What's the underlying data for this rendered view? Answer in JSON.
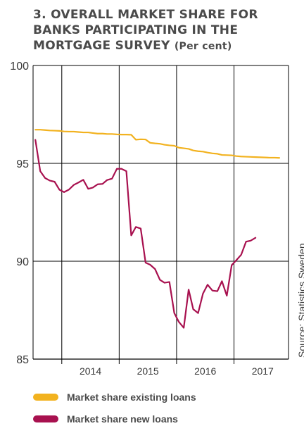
{
  "title": "3. OVERALL MARKET SHARE FOR BANKS PARTICIPATING IN THE MORTGAGE SURVEY",
  "title_unit": "(Per cent)",
  "source": "Source: Statistics Sweden.",
  "colors": {
    "existing": "#f2b21f",
    "new": "#a8114f",
    "axis": "#000000",
    "text": "#3a3a3a"
  },
  "chart_data": {
    "type": "line",
    "title": "3. OVERALL MARKET SHARE FOR BANKS PARTICIPATING IN THE MORTGAGE SURVEY (Per cent)",
    "xlabel": "",
    "ylabel": "",
    "xlim": [
      2013.5,
      2017.95
    ],
    "ylim": [
      85,
      100
    ],
    "yticks": [
      85,
      90,
      95,
      100
    ],
    "xticks": [
      "2014",
      "2015",
      "2016",
      "2017"
    ],
    "grid": true,
    "legend_position": "bottom",
    "series": [
      {
        "name": "Market share existing loans",
        "color": "#f2b21f",
        "x": [
          2013.54,
          2013.625,
          2013.71,
          2013.79,
          2013.875,
          2013.96,
          2014.04,
          2014.125,
          2014.21,
          2014.29,
          2014.375,
          2014.46,
          2014.54,
          2014.625,
          2014.71,
          2014.79,
          2014.875,
          2014.96,
          2015.04,
          2015.125,
          2015.21,
          2015.29,
          2015.375,
          2015.46,
          2015.54,
          2015.625,
          2015.71,
          2015.79,
          2015.875,
          2015.96,
          2016.04,
          2016.125,
          2016.21,
          2016.29,
          2016.375,
          2016.46,
          2016.54,
          2016.625,
          2016.71,
          2016.79,
          2016.875,
          2016.96,
          2017.04,
          2017.125,
          2017.21,
          2017.29,
          2017.375,
          2017.46,
          2017.54,
          2017.625,
          2017.71,
          2017.79
        ],
        "values": [
          96.72,
          96.72,
          96.7,
          96.68,
          96.67,
          96.66,
          96.63,
          96.62,
          96.62,
          96.6,
          96.58,
          96.58,
          96.55,
          96.52,
          96.52,
          96.5,
          96.5,
          96.48,
          96.47,
          96.47,
          96.46,
          96.21,
          96.23,
          96.22,
          96.05,
          96.02,
          96.0,
          95.95,
          95.92,
          95.9,
          95.8,
          95.77,
          95.74,
          95.66,
          95.62,
          95.6,
          95.55,
          95.51,
          95.49,
          95.43,
          95.42,
          95.41,
          95.37,
          95.35,
          95.34,
          95.33,
          95.32,
          95.31,
          95.3,
          95.29,
          95.29,
          95.28
        ]
      },
      {
        "name": "Market share new loans",
        "color": "#a8114f",
        "x": [
          2013.54,
          2013.625,
          2013.71,
          2013.79,
          2013.875,
          2013.96,
          2014.04,
          2014.125,
          2014.21,
          2014.29,
          2014.375,
          2014.46,
          2014.54,
          2014.625,
          2014.71,
          2014.79,
          2014.875,
          2014.96,
          2015.04,
          2015.125,
          2015.21,
          2015.29,
          2015.375,
          2015.46,
          2015.54,
          2015.625,
          2015.71,
          2015.79,
          2015.875,
          2015.96,
          2016.04,
          2016.125,
          2016.21,
          2016.29,
          2016.375,
          2016.46,
          2016.54,
          2016.625,
          2016.71,
          2016.79,
          2016.875,
          2016.96,
          2017.04,
          2017.125,
          2017.21,
          2017.29,
          2017.375,
          2017.46,
          2017.54,
          2017.625,
          2017.71,
          2017.79
        ],
        "values": [
          96.2,
          94.6,
          94.25,
          94.12,
          94.06,
          93.65,
          93.53,
          93.66,
          93.9,
          94.02,
          94.16,
          93.7,
          93.76,
          93.93,
          93.95,
          94.15,
          94.22,
          94.72,
          94.72,
          94.6,
          91.32,
          91.75,
          91.67,
          89.93,
          89.82,
          89.6,
          89.05,
          88.9,
          88.94,
          87.35,
          86.9,
          86.6,
          88.55,
          87.55,
          87.35,
          88.35,
          88.8,
          88.5,
          88.47,
          88.98,
          88.24,
          89.8,
          90.05,
          90.33,
          91.0,
          91.05,
          91.2,
          null,
          null,
          null,
          null,
          null
        ]
      }
    ]
  }
}
